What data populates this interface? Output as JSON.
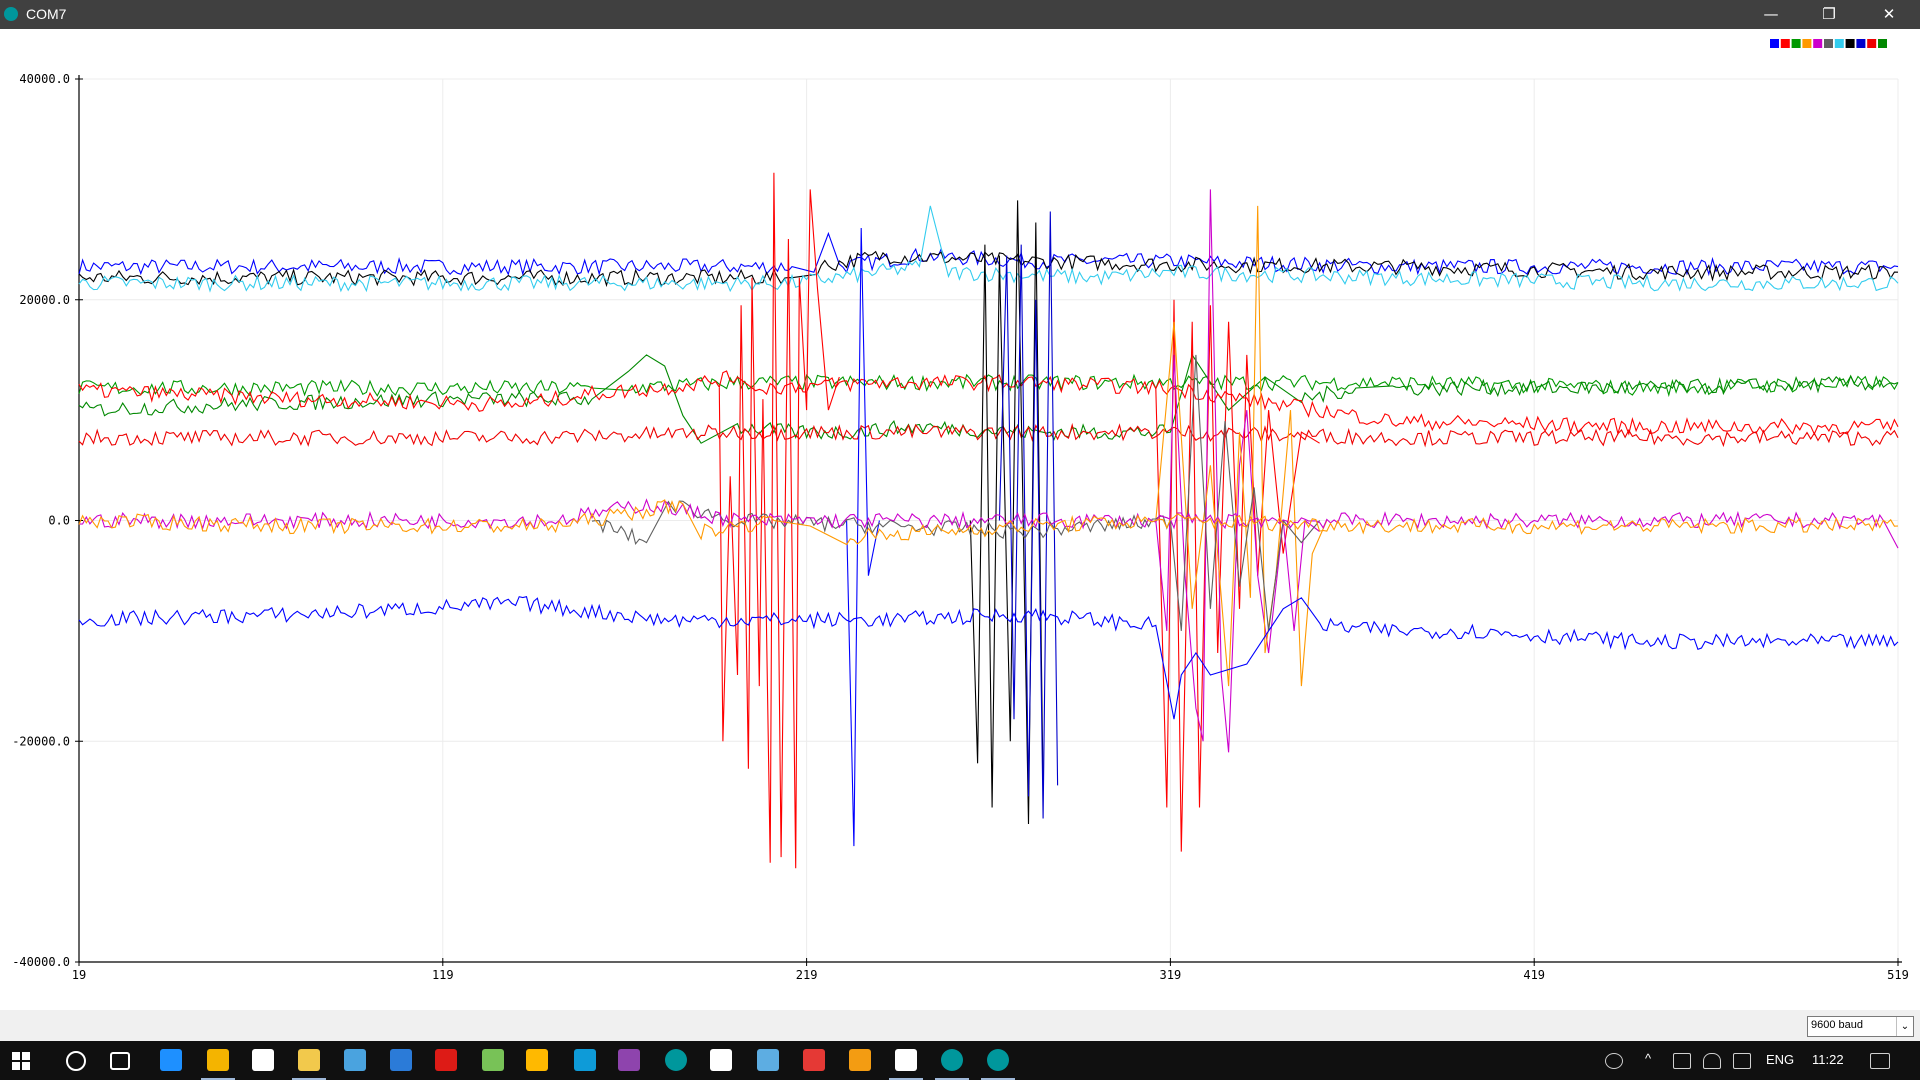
{
  "window": {
    "title": "COM7",
    "minimize_glyph": "—",
    "maximize_glyph": "❐",
    "close_glyph": "✕"
  },
  "legend_colors": [
    "#0000ff",
    "#ff0000",
    "#009900",
    "#ff9900",
    "#cc00cc",
    "#606060",
    "#33ccee",
    "#000000",
    "#0000cc",
    "#ee0000",
    "#008800"
  ],
  "chart_data": {
    "type": "line",
    "x_ticks": [
      "19",
      "119",
      "219",
      "319",
      "419",
      "519"
    ],
    "y_ticks": [
      "40000.0",
      "20000.0",
      "0.0",
      "-20000.0",
      "-40000.0"
    ],
    "xlim": [
      19,
      519
    ],
    "ylim": [
      -40000,
      40000
    ],
    "grid": true,
    "legend": "top-right",
    "series": [
      {
        "color": "#0000ff",
        "points": [
          [
            19,
            23000
          ],
          [
            60,
            23000
          ],
          [
            120,
            23000
          ],
          [
            180,
            23000
          ],
          [
            215,
            23000
          ],
          [
            221,
            22500
          ],
          [
            225,
            26000
          ],
          [
            228,
            23000
          ],
          [
            250,
            24000
          ],
          [
            280,
            23500
          ],
          [
            319,
            23500
          ],
          [
            380,
            23000
          ],
          [
            450,
            23000
          ],
          [
            519,
            23000
          ]
        ]
      },
      {
        "color": "#000000",
        "points": [
          [
            19,
            22000
          ],
          [
            80,
            22000
          ],
          [
            150,
            22000
          ],
          [
            215,
            22000
          ],
          [
            222,
            23000
          ],
          [
            240,
            24000
          ],
          [
            280,
            23500
          ],
          [
            319,
            23200
          ],
          [
            380,
            23000
          ],
          [
            450,
            22500
          ],
          [
            519,
            22500
          ]
        ]
      },
      {
        "color": "#33ccee",
        "points": [
          [
            19,
            21500
          ],
          [
            80,
            21500
          ],
          [
            150,
            21500
          ],
          [
            215,
            21500
          ],
          [
            250,
            23000
          ],
          [
            253,
            28500
          ],
          [
            258,
            22500
          ],
          [
            300,
            22000
          ],
          [
            319,
            22500
          ],
          [
            380,
            22000
          ],
          [
            450,
            21500
          ],
          [
            519,
            21500
          ]
        ]
      },
      {
        "color": "#009900",
        "points": [
          [
            19,
            12000
          ],
          [
            60,
            12000
          ],
          [
            120,
            12000
          ],
          [
            160,
            12000
          ],
          [
            170,
            12000
          ],
          [
            200,
            12500
          ],
          [
            240,
            12500
          ],
          [
            280,
            12500
          ],
          [
            319,
            12500
          ],
          [
            380,
            12500
          ],
          [
            450,
            12000
          ],
          [
            519,
            12500
          ]
        ]
      },
      {
        "color": "#008800",
        "points": [
          [
            19,
            10000
          ],
          [
            60,
            10500
          ],
          [
            120,
            11000
          ],
          [
            160,
            11000
          ],
          [
            170,
            13500
          ],
          [
            175,
            15000
          ],
          [
            180,
            14000
          ],
          [
            185,
            9500
          ],
          [
            190,
            7000
          ],
          [
            200,
            8500
          ],
          [
            215,
            8000
          ],
          [
            230,
            8000
          ],
          [
            250,
            8500
          ],
          [
            280,
            8000
          ],
          [
            319,
            8000
          ],
          [
            325,
            15000
          ],
          [
            335,
            10000
          ],
          [
            345,
            13000
          ],
          [
            355,
            11000
          ],
          [
            370,
            12000
          ],
          [
            380,
            12000
          ],
          [
            450,
            12000
          ],
          [
            519,
            12500
          ]
        ]
      },
      {
        "color": "#ff0000",
        "points": [
          [
            19,
            11800
          ],
          [
            80,
            11000
          ],
          [
            140,
            10500
          ],
          [
            160,
            11500
          ],
          [
            180,
            12000
          ],
          [
            200,
            13000
          ],
          [
            205,
            12000
          ],
          [
            240,
            12500
          ],
          [
            280,
            12500
          ],
          [
            319,
            12000
          ],
          [
            380,
            9000
          ],
          [
            450,
            8500
          ],
          [
            519,
            8500
          ]
        ]
      },
      {
        "color": "#ee0000",
        "points": [
          [
            19,
            7500
          ],
          [
            80,
            7500
          ],
          [
            140,
            7500
          ],
          [
            200,
            8000
          ],
          [
            240,
            8000
          ],
          [
            280,
            8000
          ],
          [
            319,
            8000
          ],
          [
            380,
            7500
          ],
          [
            450,
            7500
          ],
          [
            519,
            7500
          ]
        ]
      },
      {
        "color": "#ff0000",
        "points": [
          [
            195,
            12000
          ],
          [
            196,
            -20000
          ],
          [
            198,
            4000
          ],
          [
            200,
            -14000
          ],
          [
            201,
            19500
          ],
          [
            203,
            -22500
          ],
          [
            204,
            22000
          ],
          [
            206,
            -15000
          ],
          [
            207,
            11000
          ],
          [
            209,
            -31000
          ],
          [
            210,
            31500
          ],
          [
            212,
            -30500
          ],
          [
            214,
            25500
          ],
          [
            216,
            -31500
          ],
          [
            217,
            22000
          ],
          [
            219,
            10000
          ],
          [
            220,
            30000
          ],
          [
            222,
            21000
          ],
          [
            225,
            10000
          ],
          [
            228,
            13000
          ]
        ]
      },
      {
        "color": "#0000ff",
        "points": [
          [
            230,
            0
          ],
          [
            232,
            -29500
          ],
          [
            234,
            26500
          ],
          [
            236,
            -5000
          ],
          [
            239,
            0
          ]
        ]
      },
      {
        "color": "#000000",
        "points": [
          [
            264,
            0
          ],
          [
            266,
            -22000
          ],
          [
            268,
            25000
          ],
          [
            270,
            -26000
          ],
          [
            272,
            24000
          ],
          [
            275,
            -20000
          ],
          [
            277,
            29000
          ],
          [
            280,
            -27500
          ],
          [
            282,
            27000
          ],
          [
            284,
            -24500
          ]
        ]
      },
      {
        "color": "#0000cc",
        "points": [
          [
            272,
            0
          ],
          [
            274,
            24000
          ],
          [
            276,
            -18000
          ],
          [
            278,
            25000
          ],
          [
            280,
            -25000
          ],
          [
            282,
            20000
          ],
          [
            284,
            -27000
          ],
          [
            286,
            28000
          ],
          [
            288,
            -24000
          ]
        ]
      },
      {
        "color": "#ff0000",
        "points": [
          [
            315,
            12000
          ],
          [
            318,
            -26000
          ],
          [
            320,
            20000
          ],
          [
            322,
            -30000
          ],
          [
            325,
            18000
          ],
          [
            327,
            -26000
          ],
          [
            330,
            19500
          ],
          [
            332,
            -12000
          ],
          [
            335,
            18000
          ],
          [
            338,
            -8000
          ],
          [
            340,
            15000
          ],
          [
            343,
            -5000
          ],
          [
            346,
            10000
          ],
          [
            350,
            -3000
          ],
          [
            355,
            8000
          ],
          [
            360,
            7000
          ]
        ]
      },
      {
        "color": "#cc00cc",
        "points": [
          [
            315,
            0
          ],
          [
            318,
            -10000
          ],
          [
            320,
            15000
          ],
          [
            323,
            -5000
          ],
          [
            326,
            -17000
          ],
          [
            328,
            -20000
          ],
          [
            330,
            30000
          ],
          [
            333,
            -14000
          ],
          [
            335,
            -21000
          ],
          [
            338,
            5000
          ],
          [
            340,
            10000
          ],
          [
            343,
            -5000
          ],
          [
            346,
            -12000
          ],
          [
            350,
            0
          ],
          [
            353,
            -10000
          ],
          [
            356,
            0
          ],
          [
            360,
            -1000
          ]
        ]
      },
      {
        "color": "#ff9900",
        "points": [
          [
            315,
            0
          ],
          [
            320,
            18000
          ],
          [
            325,
            -8000
          ],
          [
            330,
            5000
          ],
          [
            335,
            -15000
          ],
          [
            338,
            8000
          ],
          [
            341,
            -7000
          ],
          [
            343,
            28500
          ],
          [
            345,
            -12000
          ],
          [
            348,
            -5000
          ],
          [
            352,
            10000
          ],
          [
            355,
            -15000
          ],
          [
            358,
            -3000
          ],
          [
            362,
            0
          ]
        ]
      },
      {
        "color": "#606060",
        "points": [
          [
            160,
            0
          ],
          [
            175,
            -2000
          ],
          [
            181,
            1500
          ],
          [
            200,
            0
          ],
          [
            280,
            -1000
          ],
          [
            319,
            0
          ],
          [
            322,
            -10000
          ],
          [
            326,
            15000
          ],
          [
            330,
            -8000
          ],
          [
            334,
            9000
          ],
          [
            338,
            -6000
          ],
          [
            342,
            3000
          ],
          [
            346,
            -10000
          ],
          [
            350,
            0
          ],
          [
            355,
            -2000
          ],
          [
            360,
            0
          ]
        ]
      },
      {
        "color": "#0000ff",
        "points": [
          [
            19,
            -9000
          ],
          [
            80,
            -8500
          ],
          [
            140,
            -7500
          ],
          [
            180,
            -9000
          ],
          [
            200,
            -9000
          ],
          [
            240,
            -9000
          ],
          [
            280,
            -8500
          ],
          [
            315,
            -9500
          ],
          [
            320,
            -18000
          ],
          [
            322,
            -14000
          ],
          [
            326,
            -12000
          ],
          [
            330,
            -14000
          ],
          [
            340,
            -13000
          ],
          [
            350,
            -8000
          ],
          [
            355,
            -7000
          ],
          [
            360,
            -9500
          ],
          [
            380,
            -10000
          ],
          [
            400,
            -10000
          ],
          [
            450,
            -11000
          ],
          [
            519,
            -11000
          ]
        ]
      },
      {
        "color": "#cc00cc",
        "points": [
          [
            19,
            0
          ],
          [
            80,
            0
          ],
          [
            150,
            0
          ],
          [
            175,
            1500
          ],
          [
            200,
            0
          ],
          [
            280,
            0
          ],
          [
            319,
            0
          ],
          [
            370,
            0
          ],
          [
            450,
            0
          ],
          [
            515,
            0
          ],
          [
            519,
            -2500
          ]
        ]
      },
      {
        "color": "#ff9900",
        "points": [
          [
            19,
            0
          ],
          [
            80,
            -500
          ],
          [
            150,
            -500
          ],
          [
            185,
            1500
          ],
          [
            190,
            -1000
          ],
          [
            210,
            0
          ],
          [
            220,
            -500
          ],
          [
            230,
            -1500
          ],
          [
            280,
            -500
          ],
          [
            319,
            0
          ],
          [
            380,
            -500
          ],
          [
            450,
            -500
          ],
          [
            519,
            -500
          ]
        ]
      }
    ]
  },
  "bottom": {
    "baud": "9600 baud",
    "arrow": "⌄"
  },
  "taskbar": {
    "start_icon": "windows-start-icon",
    "lang": "ENG",
    "time": "11:22",
    "icons": [
      {
        "name": "cortana-icon",
        "color": "#ffffff"
      },
      {
        "name": "task-view-icon",
        "color": "#ffffff"
      },
      {
        "name": "edge-icon",
        "color": "#1e90ff"
      },
      {
        "name": "chrome-icon",
        "color": "#f4b400"
      },
      {
        "name": "store-icon",
        "color": "#ffffff"
      },
      {
        "name": "file-explorer-icon",
        "color": "#f2c94c"
      },
      {
        "name": "app-icon-blue",
        "color": "#4aa3df"
      },
      {
        "name": "vscode-icon",
        "color": "#2b7bd8"
      },
      {
        "name": "angular-icon",
        "color": "#dd1b16"
      },
      {
        "name": "android-studio-icon",
        "color": "#78c257"
      },
      {
        "name": "colorful-app-icon",
        "color": "#ffb900"
      },
      {
        "name": "c-app-icon",
        "color": "#0e9bd8"
      },
      {
        "name": "stripes-app-icon",
        "color": "#8e44ad"
      },
      {
        "name": "arduino-icon",
        "color": "#00979c"
      },
      {
        "name": "i3-app-icon",
        "color": "#ffffff"
      },
      {
        "name": "robot-app-icon",
        "color": "#5dade2"
      },
      {
        "name": "f-app-icon-red",
        "color": "#e53935"
      },
      {
        "name": "f-app-icon-orange",
        "color": "#f39c12"
      },
      {
        "name": "settings-icon",
        "color": "#ffffff"
      },
      {
        "name": "arduino-serial-icon",
        "color": "#00979c"
      },
      {
        "name": "arduino-ide-icon",
        "color": "#00979c"
      }
    ]
  }
}
